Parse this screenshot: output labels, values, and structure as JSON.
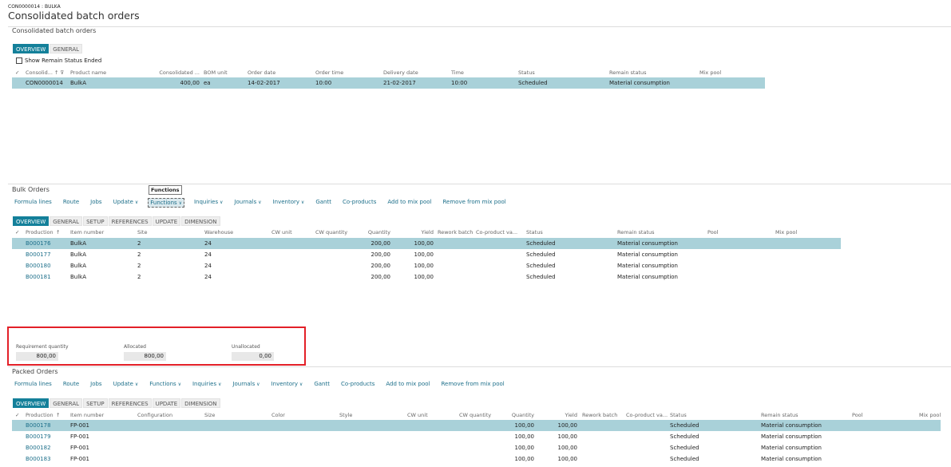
{
  "header": {
    "caption": "CON0000014 : BULKA",
    "title": "Consolidated batch orders"
  },
  "consolidated": {
    "section_title": "Consolidated batch orders",
    "tabs": [
      "OVERVIEW",
      "GENERAL"
    ],
    "checkbox_label": "Show Remain Status Ended",
    "columns": [
      "Consolid...",
      "Product name",
      "Consolidated ...",
      "BOM unit",
      "Order date",
      "Order time",
      "Delivery date",
      "Time",
      "Status",
      "Remain status",
      "Mix pool"
    ],
    "rows": [
      [
        "CON0000014",
        "BulkA",
        "400,00",
        "ea",
        "14-02-2017",
        "10:00",
        "21-02-2017",
        "10:00",
        "Scheduled",
        "Material consumption",
        ""
      ]
    ]
  },
  "bulk": {
    "section_title": "Bulk Orders",
    "tooltip": "Functions",
    "toolbar": [
      {
        "label": "Formula lines"
      },
      {
        "label": "Route"
      },
      {
        "label": "Jobs"
      },
      {
        "label": "Update",
        "dd": true
      },
      {
        "label": "Functions",
        "dd": true,
        "focus": true
      },
      {
        "label": "Inquiries",
        "dd": true
      },
      {
        "label": "Journals",
        "dd": true
      },
      {
        "label": "Inventory",
        "dd": true
      },
      {
        "label": "Gantt"
      },
      {
        "label": "Co-products"
      },
      {
        "label": "Add to mix pool"
      },
      {
        "label": "Remove from mix pool"
      }
    ],
    "tabs": [
      "OVERVIEW",
      "GENERAL",
      "SETUP",
      "REFERENCES",
      "UPDATE",
      "DIMENSION"
    ],
    "columns": [
      "Production",
      "Item number",
      "Site",
      "Warehouse",
      "CW unit",
      "CW quantity",
      "Quantity",
      "Yield",
      "Rework batch",
      "Co-product va...",
      "Status",
      "Remain status",
      "Pool",
      "Mix pool"
    ],
    "rows": [
      [
        "B000176",
        "BulkA",
        "2",
        "24",
        "",
        "",
        "200,00",
        "100,00",
        "",
        "",
        "Scheduled",
        "Material consumption",
        "",
        ""
      ],
      [
        "B000177",
        "BulkA",
        "2",
        "24",
        "",
        "",
        "200,00",
        "100,00",
        "",
        "",
        "Scheduled",
        "Material consumption",
        "",
        ""
      ],
      [
        "B000180",
        "BulkA",
        "2",
        "24",
        "",
        "",
        "200,00",
        "100,00",
        "",
        "",
        "Scheduled",
        "Material consumption",
        "",
        ""
      ],
      [
        "B000181",
        "BulkA",
        "2",
        "24",
        "",
        "",
        "200,00",
        "100,00",
        "",
        "",
        "Scheduled",
        "Material consumption",
        "",
        ""
      ]
    ]
  },
  "totals": {
    "requirement_label": "Requirement quantity",
    "requirement": "800,00",
    "allocated_label": "Allocated",
    "allocated": "800,00",
    "unallocated_label": "Unallocated",
    "unallocated": "0,00",
    "highlight_color": "#e32028"
  },
  "packed": {
    "section_title": "Packed Orders",
    "toolbar": [
      {
        "label": "Formula lines"
      },
      {
        "label": "Route"
      },
      {
        "label": "Jobs"
      },
      {
        "label": "Update",
        "dd": true
      },
      {
        "label": "Functions",
        "dd": true
      },
      {
        "label": "Inquiries",
        "dd": true
      },
      {
        "label": "Journals",
        "dd": true
      },
      {
        "label": "Inventory",
        "dd": true
      },
      {
        "label": "Gantt"
      },
      {
        "label": "Co-products"
      },
      {
        "label": "Add to mix pool"
      },
      {
        "label": "Remove from mix pool"
      }
    ],
    "tabs": [
      "OVERVIEW",
      "GENERAL",
      "SETUP",
      "REFERENCES",
      "UPDATE",
      "DIMENSION"
    ],
    "columns": [
      "Production",
      "Item number",
      "Configuration",
      "Size",
      "Color",
      "Style",
      "CW unit",
      "CW quantity",
      "Quantity",
      "Yield",
      "Rework batch",
      "Co-product va...",
      "Status",
      "Remain status",
      "Pool",
      "Mix pool"
    ],
    "rows": [
      [
        "B000178",
        "FP-001",
        "",
        "",
        "",
        "",
        "",
        "",
        "100,00",
        "100,00",
        "",
        "",
        "Scheduled",
        "Material consumption",
        "",
        ""
      ],
      [
        "B000179",
        "FP-001",
        "",
        "",
        "",
        "",
        "",
        "",
        "100,00",
        "100,00",
        "",
        "",
        "Scheduled",
        "Material consumption",
        "",
        ""
      ],
      [
        "B000182",
        "FP-001",
        "",
        "",
        "",
        "",
        "",
        "",
        "100,00",
        "100,00",
        "",
        "",
        "Scheduled",
        "Material consumption",
        "",
        ""
      ],
      [
        "B000183",
        "FP-001",
        "",
        "",
        "",
        "",
        "",
        "",
        "100,00",
        "100,00",
        "",
        "",
        "Scheduled",
        "Material consumption",
        "",
        ""
      ]
    ]
  },
  "colors": {
    "accent": "#14809a",
    "selected_row": "#a9d1d9",
    "link": "#1d6f8a"
  }
}
